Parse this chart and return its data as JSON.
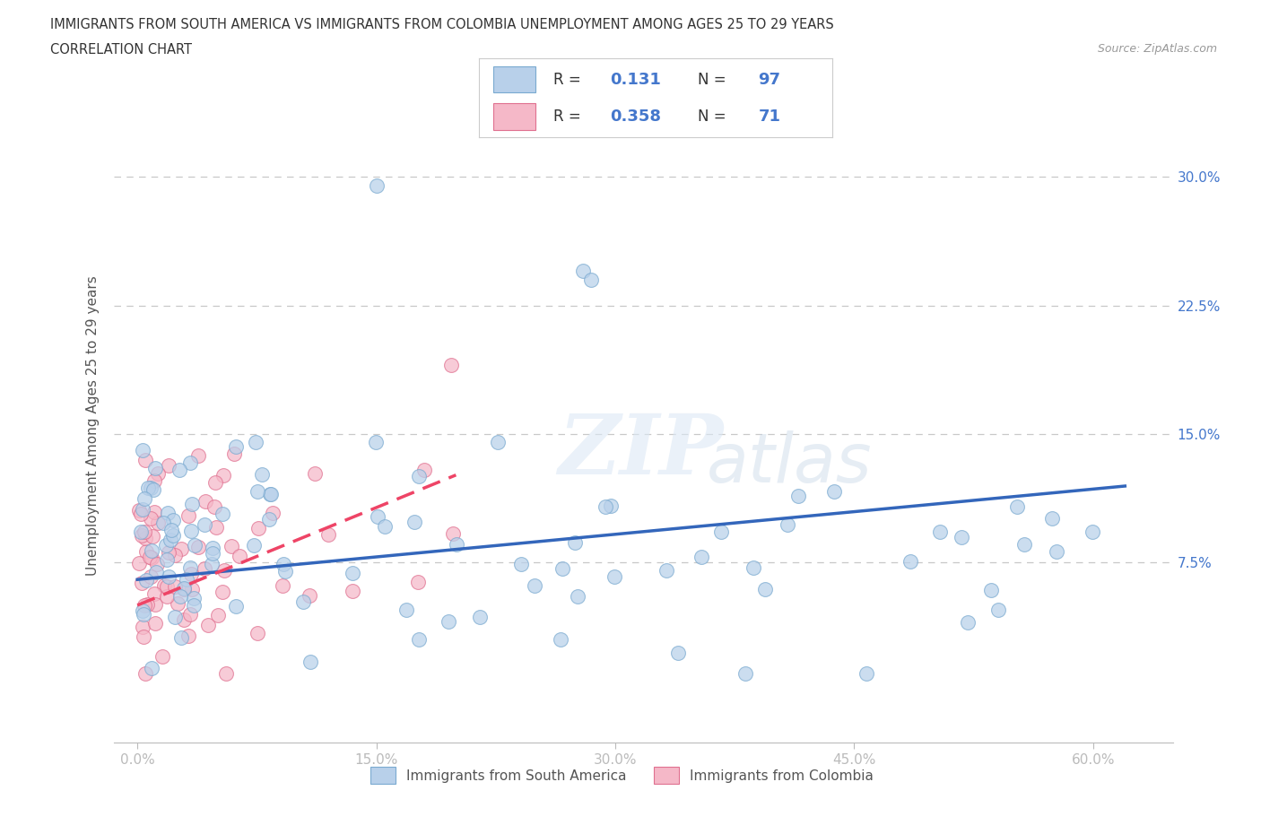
{
  "title_line1": "IMMIGRANTS FROM SOUTH AMERICA VS IMMIGRANTS FROM COLOMBIA UNEMPLOYMENT AMONG AGES 25 TO 29 YEARS",
  "title_line2": "CORRELATION CHART",
  "source_text": "Source: ZipAtlas.com",
  "ylabel": "Unemployment Among Ages 25 to 29 years",
  "xtick_vals": [
    0,
    15,
    30,
    45,
    60
  ],
  "xtick_labels": [
    "0.0%",
    "15.0%",
    "30.0%",
    "45.0%",
    "60.0%"
  ],
  "ytick_vals": [
    7.5,
    15.0,
    22.5,
    30.0
  ],
  "ytick_labels": [
    "7.5%",
    "15.0%",
    "22.5%",
    "30.0%"
  ],
  "xlim": [
    -1.5,
    65.0
  ],
  "ylim": [
    -3.0,
    34.0
  ],
  "series1_color": "#b8d0ea",
  "series1_edge": "#7aaad0",
  "series2_color": "#f5b8c8",
  "series2_edge": "#e07090",
  "series1_line_color": "#3366bb",
  "series2_line_color": "#ee4466",
  "series1_label": "Immigrants from South America",
  "series2_label": "Immigrants from Colombia",
  "R1": 0.131,
  "N1": 97,
  "R2": 0.358,
  "N2": 71,
  "watermark_zip": "ZIP",
  "watermark_atlas": "atlas",
  "bg_color": "#ffffff",
  "grid_color": "#c8c8c8",
  "title_color": "#333333",
  "tick_label_color": "#4477cc",
  "label_color": "#555555",
  "source_color": "#999999"
}
